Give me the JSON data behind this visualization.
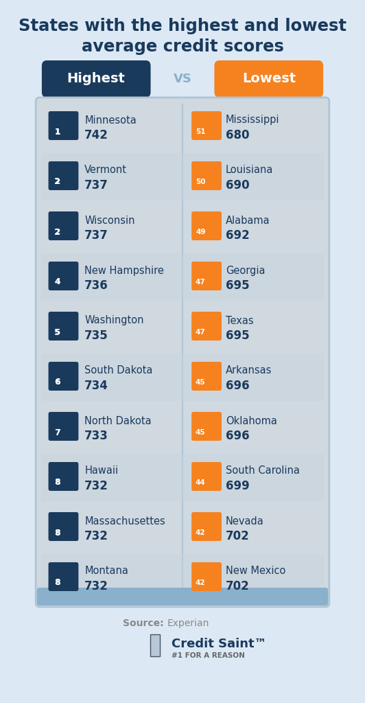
{
  "title_line1": "States with the highest and lowest",
  "title_line2": "average credit scores",
  "bg_color": "#dce9f5",
  "card_bg": "#d0d8e0",
  "card_border": "#a8b8c8",
  "dark_color": "#1a3a5c",
  "orange_color": "#f5821f",
  "highest_label": "Highest",
  "lowest_label": "Lowest",
  "vs_text": "VS",
  "highest": [
    {
      "rank": "1",
      "state": "Minnesota",
      "score": "742"
    },
    {
      "rank": "2",
      "state": "Vermont",
      "score": "737"
    },
    {
      "rank": "2",
      "state": "Wisconsin",
      "score": "737"
    },
    {
      "rank": "4",
      "state": "New Hampshire",
      "score": "736"
    },
    {
      "rank": "5",
      "state": "Washington",
      "score": "735"
    },
    {
      "rank": "6",
      "state": "South Dakota",
      "score": "734"
    },
    {
      "rank": "7",
      "state": "North Dakota",
      "score": "733"
    },
    {
      "rank": "8",
      "state": "Hawaii",
      "score": "732"
    },
    {
      "rank": "8",
      "state": "Massachusettes",
      "score": "732"
    },
    {
      "rank": "8",
      "state": "Montana",
      "score": "732"
    }
  ],
  "lowest": [
    {
      "rank": "51",
      "state": "Mississippi",
      "score": "680"
    },
    {
      "rank": "50",
      "state": "Louisiana",
      "score": "690"
    },
    {
      "rank": "49",
      "state": "Alabama",
      "score": "692"
    },
    {
      "rank": "47",
      "state": "Georgia",
      "score": "695"
    },
    {
      "rank": "47",
      "state": "Texas",
      "score": "695"
    },
    {
      "rank": "45",
      "state": "Arkansas",
      "score": "696"
    },
    {
      "rank": "45",
      "state": "Oklahoma",
      "score": "696"
    },
    {
      "rank": "44",
      "state": "South Carolina",
      "score": "699"
    },
    {
      "rank": "42",
      "state": "Nevada",
      "score": "702"
    },
    {
      "rank": "42",
      "state": "New Mexico",
      "score": "702"
    }
  ],
  "source_text": "Source:",
  "source_name": "Experian",
  "credit_saint": "Credit Saint",
  "tagline": "#1 FOR A REASON"
}
